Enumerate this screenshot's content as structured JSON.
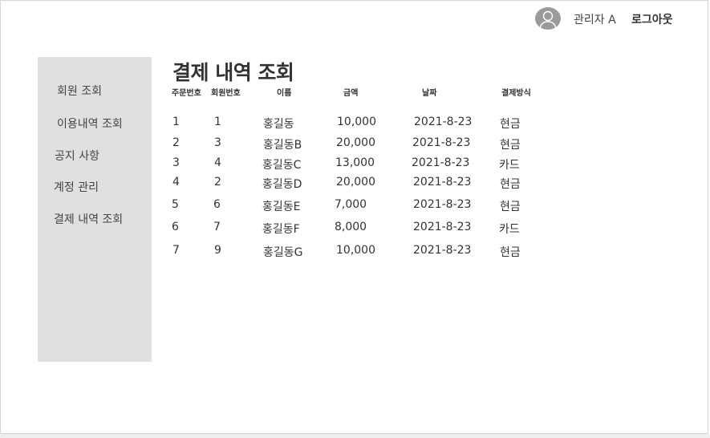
{
  "header": {
    "user_name": "관리자 A",
    "logout_label": "로그아웃"
  },
  "sidebar": {
    "items": [
      {
        "label": "회원 조회"
      },
      {
        "label": "이용내역 조회"
      },
      {
        "label": "공지 사항"
      },
      {
        "label": "계정 관리"
      },
      {
        "label": "결제 내역 조회"
      }
    ]
  },
  "main": {
    "title": "결제 내역 조회",
    "columns": [
      "주문번호",
      "회원번호",
      "이름",
      "금액",
      "날짜",
      "결제방식"
    ],
    "rows": [
      [
        "1",
        "1",
        "홍길동",
        "10,000",
        "2021-8-23",
        "현금"
      ],
      [
        "2",
        "3",
        "홍길동B",
        "20,000",
        "2021-8-23",
        "현금"
      ],
      [
        "3",
        "4",
        "홍길동C",
        "13,000",
        "2021-8-23",
        "카드"
      ],
      [
        "4",
        "2",
        "홍길동D",
        "20,000",
        "2021-8-23",
        "현금"
      ],
      [
        "5",
        "6",
        "홍길동E",
        "7,000",
        "2021-8-23",
        "현금"
      ],
      [
        "6",
        "7",
        "홍길동F",
        "8,000",
        "2021-8-23",
        "카드"
      ],
      [
        "7",
        "9",
        "홍길동G",
        "10,000",
        "2021-8-23",
        "현금"
      ]
    ]
  },
  "icons": {
    "avatar": "user-avatar-icon"
  }
}
